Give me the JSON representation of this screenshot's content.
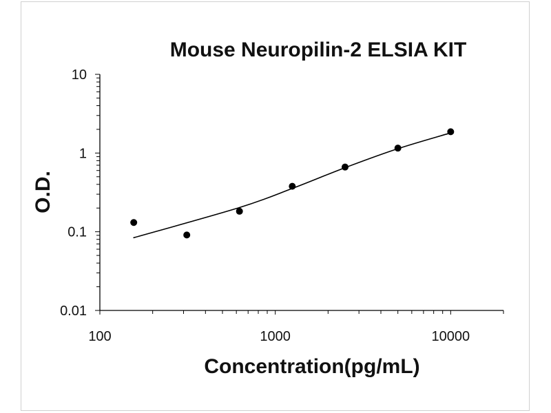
{
  "chart_data": {
    "type": "scatter",
    "title": "Mouse Neuropilin-2 ELSIA KIT",
    "xlabel": "Concentration(pg/mL)",
    "ylabel": "O.D.",
    "x_scale": "log",
    "y_scale": "log",
    "xlim": [
      100,
      20000
    ],
    "ylim": [
      0.01,
      10
    ],
    "x_ticks": [
      "100",
      "1000",
      "10000"
    ],
    "y_ticks": [
      "10",
      "1",
      "0.1",
      "0.01"
    ],
    "grid": false,
    "series": [
      {
        "type": "scatter",
        "marker": "circle",
        "color": "#000000",
        "points": [
          {
            "x": 156,
            "y": 0.131
          },
          {
            "x": 313,
            "y": 0.091
          },
          {
            "x": 625,
            "y": 0.182
          },
          {
            "x": 1250,
            "y": 0.378
          },
          {
            "x": 2500,
            "y": 0.664
          },
          {
            "x": 5000,
            "y": 1.155
          },
          {
            "x": 10000,
            "y": 1.865
          }
        ]
      },
      {
        "type": "line",
        "color": "#000000",
        "points": [
          {
            "x": 156,
            "y": 0.084
          },
          {
            "x": 625,
            "y": 0.203
          },
          {
            "x": 1250,
            "y": 0.355
          },
          {
            "x": 2500,
            "y": 0.652
          },
          {
            "x": 5000,
            "y": 1.136
          },
          {
            "x": 10000,
            "y": 1.803
          }
        ]
      }
    ]
  }
}
